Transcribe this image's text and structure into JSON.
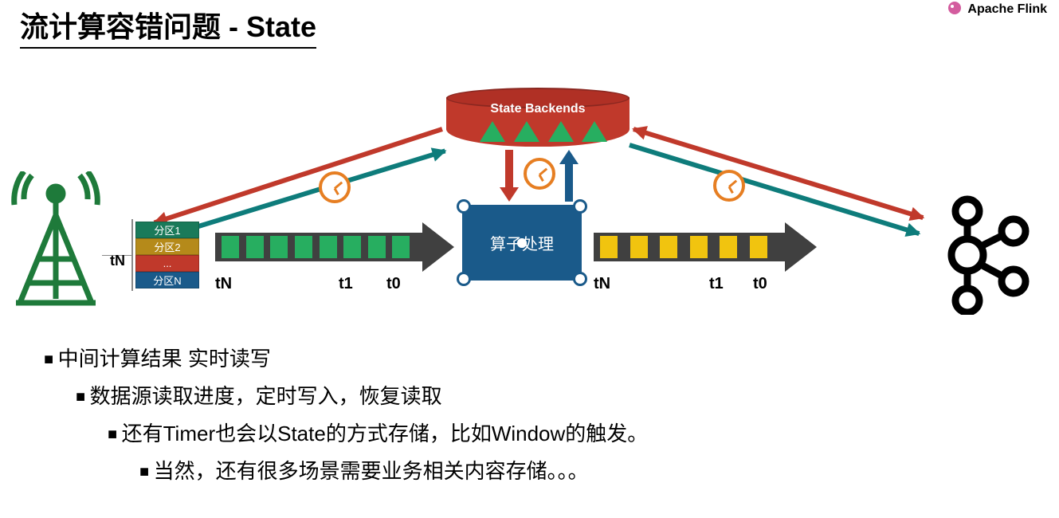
{
  "title": "流计算容错问题 - State",
  "logo_text": "Apache Flink",
  "state_backends_label": "State Backends",
  "operator_label": "算子处理",
  "partitions": {
    "rows": [
      "分区1",
      "分区2",
      "...",
      "分区N"
    ],
    "row_colors": [
      "#1a7a5a",
      "#b58a1a",
      "#c0392b",
      "#1a5a8a"
    ]
  },
  "source_label": "tN",
  "stream1": {
    "block_color": "#27ae60",
    "num_blocks": 8,
    "ticks": [
      "tN",
      "t1",
      "t0"
    ]
  },
  "stream2": {
    "block_color": "#f1c40f",
    "num_blocks": 6,
    "ticks": [
      "tN",
      "t1",
      "t0"
    ]
  },
  "colors": {
    "arrow_body": "#404040",
    "red": "#c0392b",
    "teal": "#0e7c7b",
    "blue": "#1a5a8a",
    "clock": "#e67e22",
    "antenna": "#1e7a3a",
    "kafka": "#000000"
  },
  "bullets": {
    "l1": "中间计算结果 实时读写",
    "l2": "数据源读取进度，定时写入，恢复读取",
    "l3": "还有Timer也会以State的方式存储，比如Window的触发。",
    "l4": "当然，还有很多场景需要业务相关内容存储。。。"
  }
}
